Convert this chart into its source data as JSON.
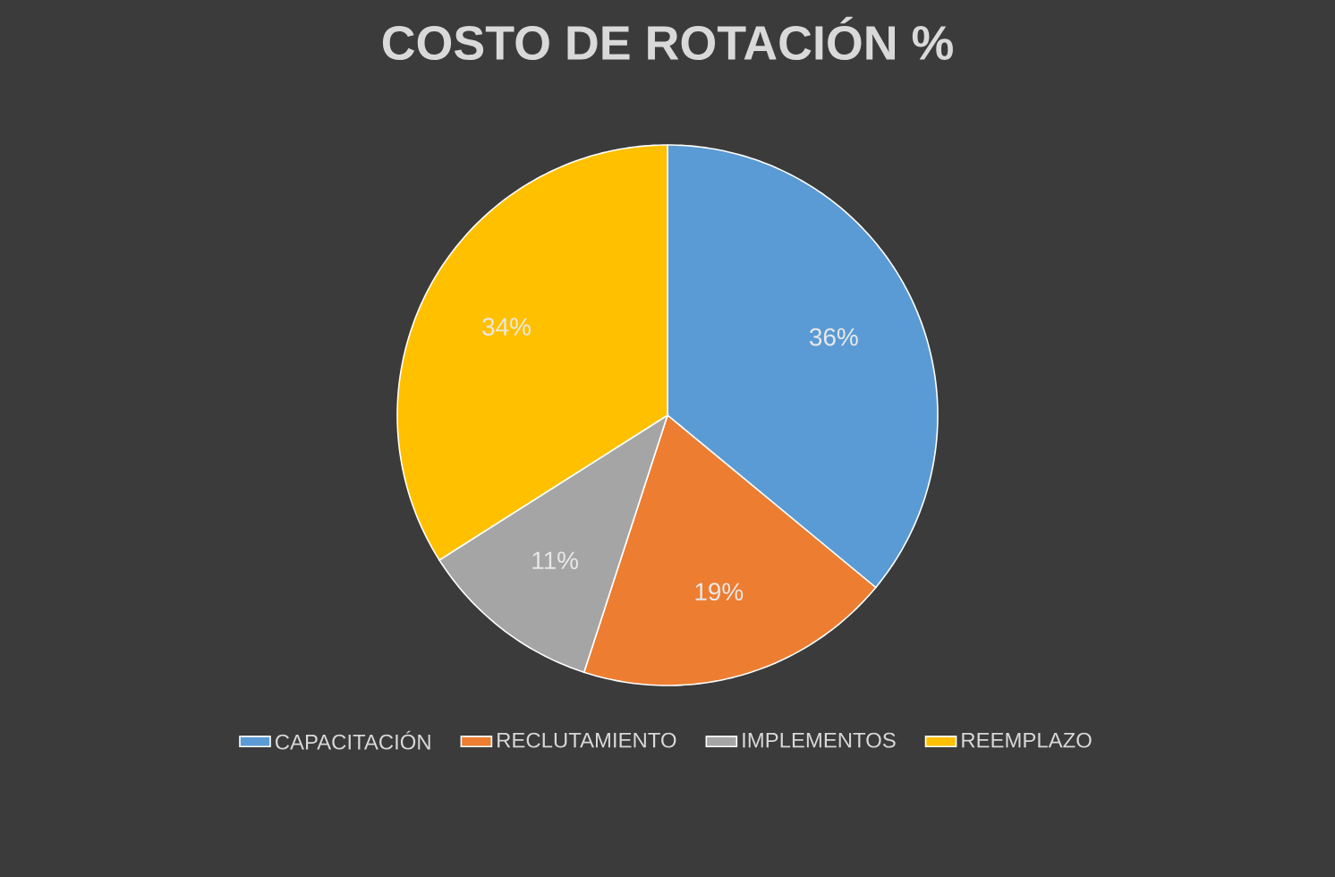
{
  "chart_data": {
    "type": "pie",
    "title": "COSTO DE ROTACIÓN %",
    "categories": [
      "CAPACITACIÓN",
      "RECLUTAMIENTO",
      "IMPLEMENTOS",
      "REEMPLAZO"
    ],
    "values": [
      36,
      19,
      11,
      34
    ],
    "value_labels": [
      "36%",
      "19%",
      "11%",
      "34%"
    ],
    "colors": [
      "#5b9bd5",
      "#ed7d31",
      "#a5a5a5",
      "#ffc000"
    ],
    "legend": "bottom"
  }
}
